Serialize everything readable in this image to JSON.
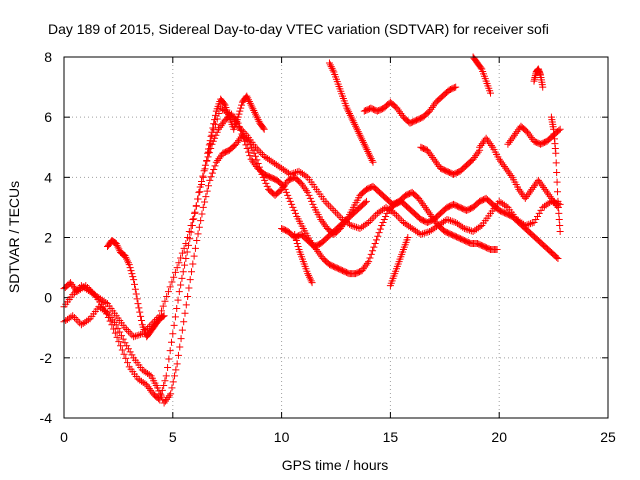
{
  "chart_data": {
    "type": "scatter",
    "title": "Day 189 of 2015, Sidereal Day-to-day VTEC variation (SDTVAR) for receiver sofi",
    "xlabel": "GPS time / hours",
    "ylabel": "SDTVAR / TECUs",
    "xlim": [
      0,
      25
    ],
    "ylim": [
      -4,
      8
    ],
    "x_ticks": [
      0,
      5,
      10,
      15,
      20,
      25
    ],
    "y_ticks": [
      -4,
      -2,
      0,
      2,
      4,
      6,
      8
    ],
    "x_tick_labels": [
      "0",
      "5",
      "10",
      "15",
      "20",
      "25"
    ],
    "y_tick_labels": [
      "-4",
      "-2",
      "0",
      "2",
      "4",
      "6",
      "8"
    ],
    "grid": true,
    "legend": "none",
    "marker": "plus",
    "color": "#ff0000",
    "series": [
      {
        "x": [
          0.0,
          0.3,
          0.6,
          1.0,
          1.4,
          1.8,
          2.2,
          2.6,
          3.0,
          3.4,
          3.8,
          4.1,
          4.4,
          4.7,
          5.0,
          5.3,
          5.6,
          5.9,
          6.2,
          6.5,
          6.8,
          7.1,
          7.4,
          7.7,
          8.0,
          8.3,
          8.6,
          8.9,
          9.2,
          9.5,
          9.8,
          10.1,
          10.4,
          10.7,
          11.0,
          11.3,
          11.6,
          11.9,
          12.2,
          12.5,
          12.8,
          13.1,
          13.4,
          13.7,
          14.0,
          14.3,
          14.6,
          14.9,
          15.2,
          15.5,
          15.8,
          16.1,
          16.4,
          16.7,
          17.0,
          17.3,
          17.6,
          17.9,
          18.2,
          18.5,
          18.8,
          19.1,
          19.4,
          19.7,
          20.0,
          20.3,
          20.6,
          20.9,
          21.2,
          21.5,
          21.8,
          22.1,
          22.4,
          22.7
        ],
        "y": [
          0.3,
          0.5,
          0.2,
          0.4,
          0.1,
          -0.3,
          -0.9,
          -1.6,
          -2.3,
          -2.7,
          -2.9,
          -3.2,
          -3.4,
          -2.6,
          -1.2,
          0.2,
          1.3,
          2.4,
          3.5,
          4.4,
          5.1,
          5.6,
          5.9,
          6.1,
          5.8,
          5.2,
          4.6,
          4.3,
          4.1,
          4.0,
          3.9,
          3.7,
          3.2,
          2.7,
          2.3,
          1.9,
          1.6,
          1.3,
          1.1,
          1.0,
          0.9,
          0.8,
          0.8,
          0.9,
          1.2,
          1.8,
          2.4,
          2.9,
          3.1,
          3.2,
          3.0,
          2.8,
          2.6,
          2.5,
          2.6,
          2.8,
          3.0,
          3.1,
          3.0,
          2.9,
          3.0,
          3.2,
          3.3,
          3.1,
          2.9,
          2.8,
          2.7,
          2.5,
          2.3,
          2.1,
          1.9,
          1.7,
          1.5,
          1.3
        ]
      },
      {
        "x": [
          0.0,
          0.4,
          0.8,
          1.2,
          1.6,
          2.0,
          2.4,
          2.8,
          3.2,
          3.6,
          4.0,
          4.3,
          4.6,
          4.9,
          5.2,
          5.5,
          5.8,
          6.1,
          6.4,
          6.7,
          7.0,
          7.3,
          7.6,
          7.9,
          8.2,
          8.5,
          8.8,
          9.1,
          9.4,
          9.7,
          10.0,
          10.3,
          10.6,
          10.9,
          11.2,
          11.5,
          11.8,
          12.1,
          12.4,
          12.7,
          13.0,
          13.3,
          13.6,
          13.9,
          14.2,
          14.5,
          14.8,
          15.1,
          15.4,
          15.7,
          16.0,
          16.3,
          16.6,
          16.9,
          17.2,
          17.5,
          17.8,
          18.1,
          18.4,
          18.7,
          19.0,
          19.3,
          19.6,
          19.9
        ],
        "y": [
          -0.8,
          -0.6,
          -0.9,
          -0.7,
          -0.3,
          -0.5,
          -0.9,
          -1.5,
          -2.0,
          -2.4,
          -2.6,
          -3.0,
          -3.5,
          -3.2,
          -2.2,
          -0.8,
          0.6,
          1.9,
          3.0,
          3.9,
          4.5,
          4.8,
          4.9,
          5.1,
          5.4,
          5.2,
          4.7,
          4.1,
          3.6,
          3.4,
          3.6,
          3.9,
          4.0,
          3.8,
          3.5,
          3.0,
          2.6,
          2.3,
          2.1,
          2.3,
          2.6,
          3.0,
          3.4,
          3.6,
          3.7,
          3.5,
          3.3,
          3.1,
          3.2,
          3.4,
          3.5,
          3.3,
          3.0,
          2.7,
          2.4,
          2.2,
          2.1,
          2.0,
          1.9,
          1.8,
          1.8,
          1.7,
          1.6,
          1.6
        ]
      },
      {
        "x": [
          0.0,
          0.4,
          0.8,
          1.2,
          1.6,
          2.0,
          2.4,
          2.8,
          3.2,
          3.6,
          4.0,
          4.4,
          4.8,
          5.2,
          5.6,
          6.0,
          6.4,
          6.8,
          7.2,
          7.6,
          8.0,
          8.4,
          8.8,
          9.2,
          9.6,
          10.0,
          10.4,
          10.8,
          11.2,
          11.6,
          12.0,
          12.4,
          12.8,
          13.2,
          13.6,
          14.0,
          14.4,
          14.8,
          15.2,
          15.6,
          16.0,
          16.4,
          16.8,
          17.2,
          17.6,
          18.0,
          18.4,
          18.8,
          19.2,
          19.6,
          20.0,
          20.4,
          20.8,
          21.2,
          21.6,
          22.0,
          22.4,
          22.8
        ],
        "y": [
          -0.3,
          0.1,
          0.4,
          0.2,
          0.0,
          -0.2,
          -0.6,
          -1.0,
          -1.3,
          -1.2,
          -0.9,
          -0.6,
          0.2,
          1.0,
          1.8,
          2.8,
          4.0,
          5.4,
          6.3,
          6.1,
          5.7,
          5.4,
          5.0,
          4.7,
          4.5,
          4.3,
          4.1,
          4.2,
          4.0,
          3.6,
          3.2,
          2.9,
          2.6,
          2.4,
          2.3,
          2.5,
          2.8,
          3.0,
          2.8,
          2.5,
          2.3,
          2.1,
          2.2,
          2.4,
          2.6,
          2.5,
          2.3,
          2.2,
          2.4,
          2.8,
          3.2,
          3.0,
          2.6,
          2.4,
          2.5,
          3.0,
          3.2,
          3.1
        ]
      },
      {
        "x": [
          2.0,
          2.2,
          2.4,
          2.6,
          2.8,
          3.0,
          3.2,
          3.4,
          3.6,
          3.8,
          4.0,
          4.2,
          4.4,
          4.6
        ],
        "y": [
          1.7,
          1.9,
          1.8,
          1.5,
          1.4,
          1.1,
          0.6,
          -0.2,
          -0.9,
          -1.3,
          -1.1,
          -0.9,
          -0.7,
          -0.6
        ]
      },
      {
        "x": [
          6.6,
          6.8,
          7.0,
          7.2,
          7.4,
          7.6,
          7.8,
          8.0,
          8.2,
          8.4,
          8.6,
          8.8,
          9.0,
          9.2
        ],
        "y": [
          4.8,
          5.5,
          6.2,
          6.6,
          6.4,
          6.0,
          5.6,
          6.0,
          6.5,
          6.7,
          6.4,
          6.1,
          5.8,
          5.6
        ]
      },
      {
        "x": [
          10.0,
          10.3,
          10.6,
          10.9,
          11.2,
          11.5,
          11.8,
          12.1,
          12.4,
          12.7,
          13.0,
          13.3,
          13.6,
          13.9
        ],
        "y": [
          2.3,
          2.2,
          2.0,
          2.1,
          1.9,
          1.7,
          1.8,
          2.0,
          2.2,
          2.4,
          2.6,
          2.8,
          3.0,
          3.2
        ]
      },
      {
        "x": [
          10.6,
          10.8,
          11.0,
          11.2,
          11.4
        ],
        "y": [
          2.1,
          1.6,
          1.2,
          0.8,
          0.5
        ]
      },
      {
        "x": [
          12.2,
          12.4,
          12.6,
          12.8,
          13.0,
          13.2,
          13.4,
          13.6,
          13.8,
          14.0,
          14.2
        ],
        "y": [
          7.8,
          7.5,
          7.1,
          6.7,
          6.3,
          6.0,
          5.7,
          5.4,
          5.1,
          4.8,
          4.5
        ]
      },
      {
        "x": [
          13.8,
          14.1,
          14.4,
          14.7,
          15.0,
          15.3,
          15.6,
          15.9,
          16.2,
          16.5,
          16.8,
          17.1,
          17.4,
          17.7,
          18.0
        ],
        "y": [
          6.2,
          6.3,
          6.2,
          6.3,
          6.5,
          6.3,
          6.0,
          5.8,
          5.9,
          6.0,
          6.2,
          6.5,
          6.7,
          6.9,
          7.0
        ]
      },
      {
        "x": [
          16.4,
          16.7,
          17.0,
          17.3,
          17.6,
          17.9,
          18.2,
          18.5,
          18.8,
          19.1
        ],
        "y": [
          5.0,
          4.9,
          4.6,
          4.3,
          4.2,
          4.1,
          4.2,
          4.4,
          4.6,
          4.9
        ]
      },
      {
        "x": [
          18.8,
          19.0,
          19.2,
          19.4,
          19.6
        ],
        "y": [
          8.0,
          7.8,
          7.6,
          7.2,
          6.8
        ]
      },
      {
        "x": [
          19.1,
          19.4,
          19.7,
          20.0,
          20.3,
          20.6,
          20.9,
          21.2,
          21.5,
          21.8,
          22.1,
          22.4,
          22.7
        ],
        "y": [
          5.0,
          5.3,
          5.0,
          4.6,
          4.3,
          4.0,
          3.6,
          3.3,
          3.6,
          3.9,
          3.6,
          3.3,
          3.0
        ]
      },
      {
        "x": [
          20.4,
          20.7,
          21.0,
          21.3,
          21.6,
          21.9,
          22.2,
          22.5,
          22.8
        ],
        "y": [
          5.1,
          5.4,
          5.7,
          5.5,
          5.2,
          5.1,
          5.2,
          5.4,
          5.6
        ]
      },
      {
        "x": [
          21.6,
          21.7,
          21.8,
          21.9,
          22.0
        ],
        "y": [
          7.2,
          7.5,
          7.6,
          7.4,
          7.0
        ]
      },
      {
        "x": [
          22.4,
          22.5,
          22.6,
          22.7,
          22.8
        ],
        "y": [
          6.0,
          5.6,
          4.8,
          3.2,
          2.2
        ]
      },
      {
        "x": [
          15.0,
          15.2,
          15.4,
          15.6,
          15.8
        ],
        "y": [
          0.4,
          0.8,
          1.2,
          1.6,
          2.0
        ]
      }
    ]
  }
}
